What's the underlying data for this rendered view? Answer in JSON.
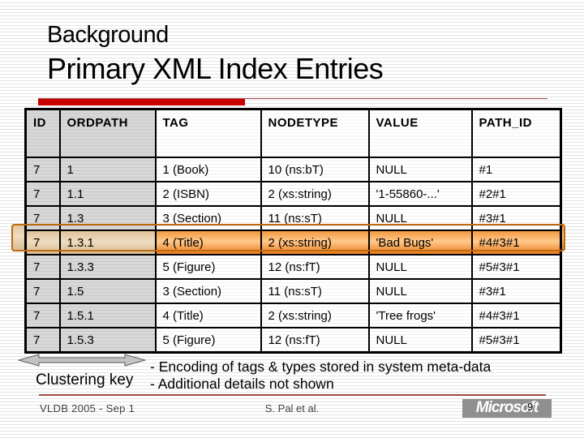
{
  "slide": {
    "pretitle": "Background",
    "title": "Primary XML Index Entries"
  },
  "table": {
    "headers": [
      "ID",
      "ORDPATH",
      "TAG",
      "NODETYPE",
      "VALUE",
      "PATH_ID"
    ],
    "rows": [
      [
        "7",
        "1",
        "1 (Book)",
        "10 (ns:bT)",
        "NULL",
        "#1"
      ],
      [
        "7",
        "1.1",
        "2 (ISBN)",
        "2 (xs:string)",
        "'1-55860-...'",
        "#2#1"
      ],
      [
        "7",
        "1.3",
        "3 (Section)",
        "11 (ns:sT)",
        "NULL",
        "#3#1"
      ],
      [
        "7",
        "1.3.1",
        "4 (Title)",
        "2 (xs:string)",
        "'Bad Bugs'",
        "#4#3#1"
      ],
      [
        "7",
        "1.3.3",
        "5 (Figure)",
        "12 (ns:fT)",
        "NULL",
        "#5#3#1"
      ],
      [
        "7",
        "1.5",
        "3 (Section)",
        "11 (ns:sT)",
        "NULL",
        "#3#1"
      ],
      [
        "7",
        "1.5.1",
        "4 (Title)",
        "2 (xs:string)",
        "'Tree frogs'",
        "#4#3#1"
      ],
      [
        "7",
        "1.5.3",
        "5 (Figure)",
        "12 (ns:fT)",
        "NULL",
        "#5#3#1"
      ]
    ],
    "highlighted_row_index": 3,
    "key_column_count": 2
  },
  "annotations": {
    "clustering_key_label": "Clustering key",
    "notes": [
      "- Encoding of tags & types stored in system meta-data",
      "- Additional details not shown"
    ]
  },
  "footer": {
    "left": "VLDB 2005 - Sep 1",
    "center": "S. Pal et al.",
    "logo_text": "Microsoft",
    "page_number": "9"
  },
  "colors": {
    "accent_red_bar": "#c90000",
    "thin_rule_red": "#9e4a44",
    "highlight_orange": "#ec7c1b",
    "highlight_tan": "#e0c49c",
    "key_cell_gray": "#d1d1d1",
    "logo_gray": "#8f8f8f"
  }
}
